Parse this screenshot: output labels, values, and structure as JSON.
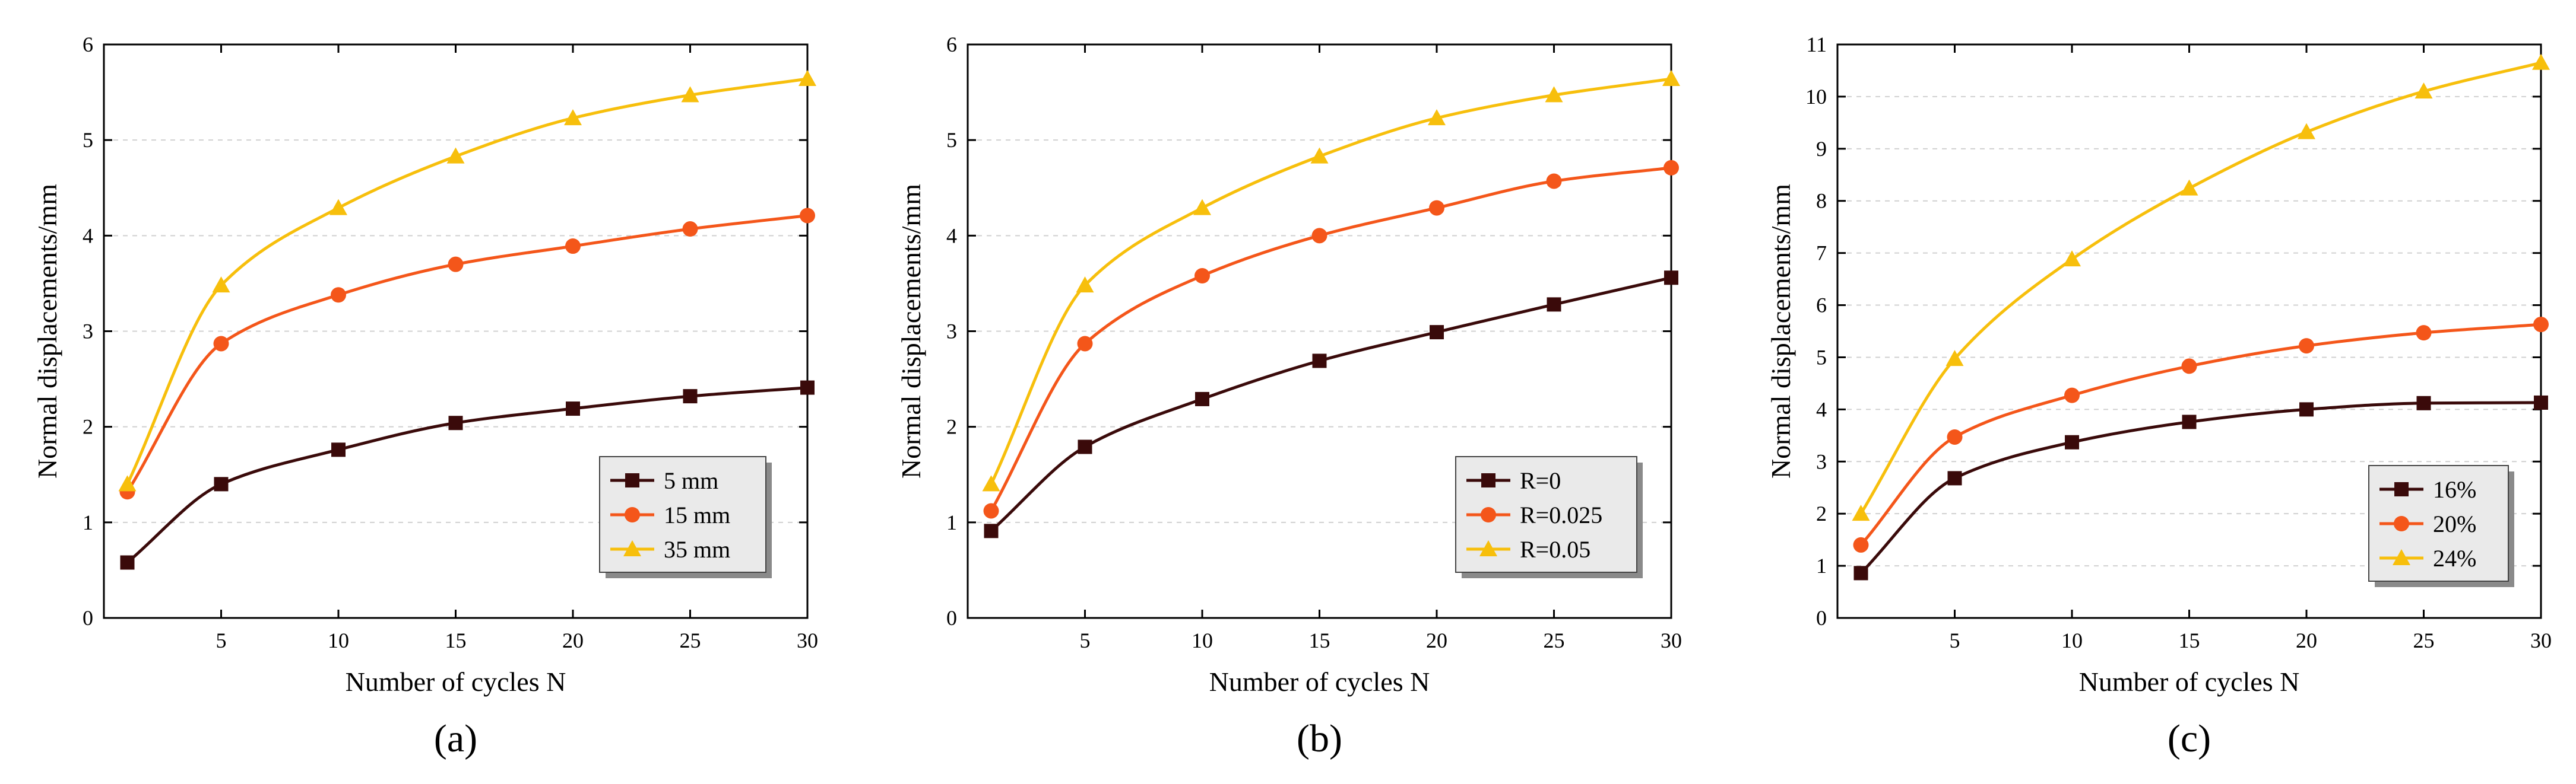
{
  "colors": {
    "series": [
      "#3a0a0a",
      "#f4561a",
      "#f7bf0c"
    ],
    "grid": "#d0d0d0",
    "legend_bg": "#eaeaea"
  },
  "chart_data": [
    {
      "type": "line",
      "label": "(a)",
      "xlabel": "Number of cycles N",
      "ylabel": "Normal displacements/mm",
      "xlim": [
        0,
        30
      ],
      "ylim": [
        0,
        6
      ],
      "xticks": [
        5,
        10,
        15,
        20,
        25,
        30
      ],
      "yticks": [
        0,
        1,
        2,
        3,
        4,
        5,
        6
      ],
      "grid": true,
      "legend_position": "lower-right",
      "x": [
        1,
        5,
        10,
        15,
        20,
        25,
        30
      ],
      "series": [
        {
          "name": "5 mm",
          "marker": "square",
          "values": [
            0.58,
            1.4,
            1.76,
            2.04,
            2.19,
            2.32,
            2.41
          ]
        },
        {
          "name": "15 mm",
          "marker": "circle",
          "values": [
            1.32,
            2.87,
            3.38,
            3.7,
            3.89,
            4.07,
            4.21
          ]
        },
        {
          "name": "35 mm",
          "marker": "triangle",
          "values": [
            1.4,
            3.48,
            4.29,
            4.83,
            5.23,
            5.47,
            5.64
          ]
        }
      ]
    },
    {
      "type": "line",
      "label": "(b)",
      "xlabel": "Number of cycles N",
      "ylabel": "Normal displacements/mm",
      "xlim": [
        0,
        30
      ],
      "ylim": [
        0,
        6
      ],
      "xticks": [
        5,
        10,
        15,
        20,
        25,
        30
      ],
      "yticks": [
        0,
        1,
        2,
        3,
        4,
        5,
        6
      ],
      "grid": true,
      "legend_position": "lower-right",
      "x": [
        1,
        5,
        10,
        15,
        20,
        25,
        30
      ],
      "series": [
        {
          "name": "R=0",
          "marker": "square",
          "values": [
            0.91,
            1.79,
            2.29,
            2.69,
            2.99,
            3.28,
            3.56
          ]
        },
        {
          "name": "R=0.025",
          "marker": "circle",
          "values": [
            1.12,
            2.87,
            3.58,
            4.0,
            4.29,
            4.57,
            4.71
          ]
        },
        {
          "name": "R=0.05",
          "marker": "triangle",
          "values": [
            1.4,
            3.48,
            4.29,
            4.83,
            5.23,
            5.47,
            5.64
          ]
        }
      ]
    },
    {
      "type": "line",
      "label": "(c)",
      "xlabel": "Number of cycles N",
      "ylabel": "Normal displacements/mm",
      "xlim": [
        0,
        30
      ],
      "ylim": [
        0,
        11
      ],
      "xticks": [
        5,
        10,
        15,
        20,
        25,
        30
      ],
      "yticks": [
        0,
        1,
        2,
        3,
        4,
        5,
        6,
        7,
        8,
        9,
        10,
        11
      ],
      "grid": true,
      "legend_position": "lower-right",
      "x": [
        1,
        5,
        10,
        15,
        20,
        25,
        30
      ],
      "series": [
        {
          "name": "16%",
          "marker": "square",
          "values": [
            0.86,
            2.68,
            3.37,
            3.76,
            4.0,
            4.12,
            4.13
          ]
        },
        {
          "name": "20%",
          "marker": "circle",
          "values": [
            1.4,
            3.47,
            4.27,
            4.83,
            5.22,
            5.47,
            5.63
          ]
        },
        {
          "name": "24%",
          "marker": "triangle",
          "values": [
            2.0,
            4.97,
            6.88,
            8.24,
            9.32,
            10.1,
            10.65
          ]
        }
      ]
    }
  ]
}
